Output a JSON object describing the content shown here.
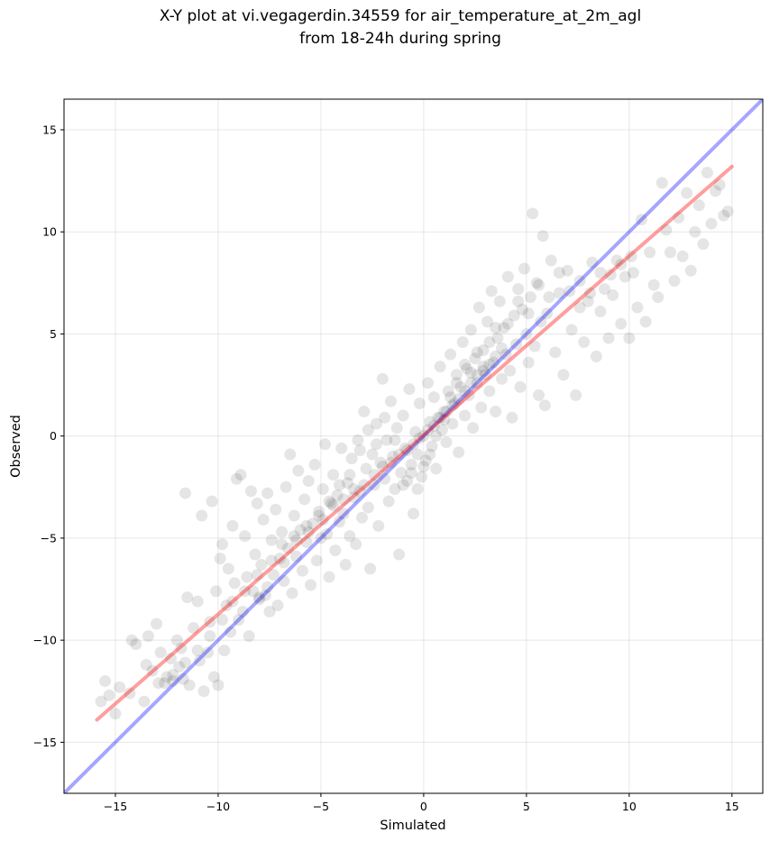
{
  "chart_data": {
    "type": "scatter",
    "title": "X-Y plot at vi.vegagerdin.34559 for air_temperature_at_2m_agl",
    "subtitle": "from 18-24h during spring",
    "xlabel": "Simulated",
    "ylabel": "Observed",
    "xlim": [
      -17.5,
      16.5
    ],
    "ylim": [
      -17.5,
      16.5
    ],
    "xticks": [
      -15,
      -10,
      -5,
      0,
      5,
      10,
      15
    ],
    "yticks": [
      -15,
      -10,
      -5,
      0,
      5,
      10,
      15
    ],
    "xtick_labels": [
      "−15",
      "−10",
      "−5",
      "0",
      "5",
      "10",
      "15"
    ],
    "ytick_labels": [
      "−15",
      "−10",
      "−5",
      "0",
      "5",
      "10",
      "15"
    ],
    "grid": true,
    "point_color": "#000000",
    "point_alpha": 0.1,
    "identity_line": {
      "color": "#0000ff",
      "from": [
        -17.5,
        -17.5
      ],
      "to": [
        16.5,
        16.5
      ]
    },
    "fit_line": {
      "color": "#ff0000",
      "from": [
        -15.9,
        -13.9
      ],
      "to": [
        15.0,
        13.2
      ]
    },
    "points": [
      [
        -15.7,
        -13.0
      ],
      [
        -15.5,
        -12.0
      ],
      [
        -15.3,
        -12.7
      ],
      [
        -15.0,
        -13.6
      ],
      [
        -14.8,
        -12.3
      ],
      [
        -14.3,
        -12.6
      ],
      [
        -14.2,
        -10.0
      ],
      [
        -14.0,
        -10.2
      ],
      [
        -13.6,
        -13.0
      ],
      [
        -13.5,
        -11.2
      ],
      [
        -13.4,
        -9.8
      ],
      [
        -13.2,
        -11.5
      ],
      [
        -13.0,
        -9.2
      ],
      [
        -12.8,
        -10.6
      ],
      [
        -12.6,
        -12.1
      ],
      [
        -12.5,
        -11.8
      ],
      [
        -12.3,
        -10.9
      ],
      [
        -12.2,
        -12.0
      ],
      [
        -12.0,
        -10.0
      ],
      [
        -11.9,
        -11.3
      ],
      [
        -11.8,
        -10.4
      ],
      [
        -11.7,
        -11.9
      ],
      [
        -11.6,
        -2.8
      ],
      [
        -11.5,
        -7.9
      ],
      [
        -11.4,
        -12.2
      ],
      [
        -11.2,
        -9.4
      ],
      [
        -11.0,
        -8.1
      ],
      [
        -10.9,
        -11.0
      ],
      [
        -10.8,
        -3.9
      ],
      [
        -10.7,
        -12.5
      ],
      [
        -10.5,
        -10.6
      ],
      [
        -10.4,
        -9.1
      ],
      [
        -10.3,
        -3.2
      ],
      [
        -10.2,
        -11.8
      ],
      [
        -10.1,
        -7.6
      ],
      [
        -10.0,
        -12.2
      ],
      [
        -9.9,
        -6.0
      ],
      [
        -9.8,
        -5.3
      ],
      [
        -9.7,
        -10.5
      ],
      [
        -9.6,
        -8.3
      ],
      [
        -9.5,
        -6.5
      ],
      [
        -9.4,
        -9.6
      ],
      [
        -9.3,
        -4.4
      ],
      [
        -9.2,
        -7.2
      ],
      [
        -9.1,
        -2.1
      ],
      [
        -9.0,
        -9.0
      ],
      [
        -8.9,
        -1.9
      ],
      [
        -8.8,
        -8.6
      ],
      [
        -8.7,
        -4.9
      ],
      [
        -8.6,
        -6.9
      ],
      [
        -8.5,
        -9.8
      ],
      [
        -8.4,
        -2.7
      ],
      [
        -8.3,
        -7.6
      ],
      [
        -8.2,
        -5.8
      ],
      [
        -8.1,
        -3.3
      ],
      [
        -8.0,
        -8.0
      ],
      [
        -7.9,
        -6.3
      ],
      [
        -7.8,
        -4.1
      ],
      [
        -7.7,
        -7.8
      ],
      [
        -7.6,
        -2.8
      ],
      [
        -7.5,
        -8.6
      ],
      [
        -7.4,
        -5.1
      ],
      [
        -7.3,
        -6.8
      ],
      [
        -7.2,
        -3.6
      ],
      [
        -7.1,
        -8.3
      ],
      [
        -7.0,
        -6.0
      ],
      [
        -6.9,
        -4.7
      ],
      [
        -6.8,
        -7.1
      ],
      [
        -6.7,
        -2.5
      ],
      [
        -6.6,
        -5.5
      ],
      [
        -6.5,
        -0.9
      ],
      [
        -6.4,
        -7.7
      ],
      [
        -6.3,
        -3.9
      ],
      [
        -6.2,
        -5.9
      ],
      [
        -6.1,
        -1.7
      ],
      [
        -6.0,
        -4.6
      ],
      [
        -5.9,
        -6.6
      ],
      [
        -5.8,
        -3.1
      ],
      [
        -5.7,
        -5.2
      ],
      [
        -5.6,
        -2.2
      ],
      [
        -5.5,
        -7.3
      ],
      [
        -5.4,
        -4.3
      ],
      [
        -5.3,
        -1.4
      ],
      [
        -5.2,
        -6.1
      ],
      [
        -5.1,
        -3.7
      ],
      [
        -5.0,
        -5.0
      ],
      [
        -4.9,
        -2.6
      ],
      [
        -4.8,
        -0.4
      ],
      [
        -4.7,
        -4.8
      ],
      [
        -4.6,
        -6.9
      ],
      [
        -4.5,
        -3.3
      ],
      [
        -4.4,
        -1.9
      ],
      [
        -4.3,
        -5.6
      ],
      [
        -4.2,
        -2.9
      ],
      [
        -4.1,
        -4.2
      ],
      [
        -4.0,
        -0.6
      ],
      [
        -3.9,
        -3.8
      ],
      [
        -3.8,
        -6.3
      ],
      [
        -3.7,
        -2.3
      ],
      [
        -3.6,
        -4.9
      ],
      [
        -3.5,
        -1.1
      ],
      [
        -3.4,
        -3.0
      ],
      [
        -3.3,
        -5.3
      ],
      [
        -3.2,
        -0.2
      ],
      [
        -3.1,
        -2.7
      ],
      [
        -3.0,
        -4.0
      ],
      [
        -2.9,
        1.2
      ],
      [
        -2.8,
        -1.6
      ],
      [
        -2.7,
        -3.5
      ],
      [
        -2.6,
        -6.5
      ],
      [
        -2.5,
        -0.9
      ],
      [
        -2.4,
        -2.4
      ],
      [
        -2.3,
        0.6
      ],
      [
        -2.2,
        -4.4
      ],
      [
        -2.1,
        -1.3
      ],
      [
        -2.0,
        2.8
      ],
      [
        -1.9,
        -2.1
      ],
      [
        -1.8,
        -0.2
      ],
      [
        -1.7,
        -3.2
      ],
      [
        -1.6,
        1.7
      ],
      [
        -1.5,
        -1.0
      ],
      [
        -1.4,
        -2.6
      ],
      [
        -1.3,
        0.4
      ],
      [
        -1.2,
        -5.8
      ],
      [
        -1.1,
        -1.8
      ],
      [
        -1.0,
        1.0
      ],
      [
        -0.9,
        -0.6
      ],
      [
        -0.8,
        -2.2
      ],
      [
        -0.7,
        2.3
      ],
      [
        -0.6,
        -1.4
      ],
      [
        -0.5,
        -3.8
      ],
      [
        -0.4,
        0.2
      ],
      [
        -0.3,
        -0.9
      ],
      [
        -0.2,
        1.6
      ],
      [
        -0.1,
        -2.0
      ],
      [
        0.0,
        0.0
      ],
      [
        0.1,
        -1.2
      ],
      [
        0.2,
        2.6
      ],
      [
        0.3,
        0.7
      ],
      [
        0.4,
        -0.5
      ],
      [
        0.5,
        1.9
      ],
      [
        0.6,
        -1.6
      ],
      [
        0.7,
        0.9
      ],
      [
        0.8,
        3.4
      ],
      [
        0.9,
        0.3
      ],
      [
        1.0,
        1.2
      ],
      [
        1.1,
        -0.3
      ],
      [
        1.2,
        2.2
      ],
      [
        1.3,
        4.0
      ],
      [
        1.4,
        0.6
      ],
      [
        1.5,
        1.6
      ],
      [
        1.6,
        3.0
      ],
      [
        1.7,
        -0.8
      ],
      [
        1.8,
        2.4
      ],
      [
        1.9,
        4.6
      ],
      [
        2.0,
        1.0
      ],
      [
        2.1,
        3.3
      ],
      [
        2.2,
        2.0
      ],
      [
        2.3,
        5.2
      ],
      [
        2.4,
        0.4
      ],
      [
        2.5,
        3.8
      ],
      [
        2.6,
        2.6
      ],
      [
        2.7,
        6.3
      ],
      [
        2.8,
        1.4
      ],
      [
        2.9,
        4.2
      ],
      [
        3.0,
        3.0
      ],
      [
        3.1,
        5.6
      ],
      [
        3.2,
        2.2
      ],
      [
        3.3,
        7.1
      ],
      [
        3.4,
        3.6
      ],
      [
        3.5,
        1.2
      ],
      [
        3.6,
        4.8
      ],
      [
        3.7,
        6.6
      ],
      [
        3.8,
        2.8
      ],
      [
        3.9,
        5.3
      ],
      [
        4.0,
        4.0
      ],
      [
        4.1,
        7.8
      ],
      [
        4.2,
        3.2
      ],
      [
        4.3,
        0.9
      ],
      [
        4.4,
        5.9
      ],
      [
        4.5,
        4.5
      ],
      [
        4.6,
        7.2
      ],
      [
        4.7,
        2.4
      ],
      [
        4.8,
        6.2
      ],
      [
        4.9,
        8.2
      ],
      [
        5.0,
        5.0
      ],
      [
        5.1,
        3.6
      ],
      [
        5.2,
        6.8
      ],
      [
        5.3,
        10.9
      ],
      [
        5.4,
        4.4
      ],
      [
        5.5,
        7.5
      ],
      [
        5.6,
        2.0
      ],
      [
        5.7,
        5.6
      ],
      [
        5.8,
        9.8
      ],
      [
        5.9,
        1.5
      ],
      [
        6.0,
        6.0
      ],
      [
        6.2,
        8.6
      ],
      [
        6.4,
        4.1
      ],
      [
        6.6,
        7.0
      ],
      [
        6.8,
        3.0
      ],
      [
        7.0,
        8.1
      ],
      [
        7.2,
        5.2
      ],
      [
        7.4,
        2.0
      ],
      [
        7.6,
        7.6
      ],
      [
        7.8,
        4.6
      ],
      [
        8.0,
        6.6
      ],
      [
        8.2,
        8.5
      ],
      [
        8.4,
        3.9
      ],
      [
        8.6,
        6.1
      ],
      [
        8.8,
        7.2
      ],
      [
        9.0,
        4.8
      ],
      [
        9.2,
        6.9
      ],
      [
        9.4,
        8.6
      ],
      [
        9.6,
        5.5
      ],
      [
        9.8,
        7.8
      ],
      [
        10.0,
        4.8
      ],
      [
        10.2,
        8.0
      ],
      [
        10.4,
        6.3
      ],
      [
        10.6,
        10.6
      ],
      [
        10.8,
        5.6
      ],
      [
        11.0,
        9.0
      ],
      [
        11.2,
        7.4
      ],
      [
        11.4,
        6.8
      ],
      [
        11.6,
        12.4
      ],
      [
        11.8,
        10.1
      ],
      [
        12.0,
        9.0
      ],
      [
        12.2,
        7.6
      ],
      [
        12.4,
        10.7
      ],
      [
        12.6,
        8.8
      ],
      [
        12.8,
        11.9
      ],
      [
        13.0,
        8.1
      ],
      [
        13.2,
        10.0
      ],
      [
        13.4,
        11.3
      ],
      [
        13.6,
        9.4
      ],
      [
        13.8,
        12.9
      ],
      [
        14.0,
        10.4
      ],
      [
        14.2,
        12.0
      ],
      [
        14.4,
        12.3
      ],
      [
        14.6,
        10.8
      ],
      [
        14.8,
        11.0
      ],
      [
        -8.0,
        -7.9
      ],
      [
        -7.6,
        -7.4
      ],
      [
        -6.8,
        -6.2
      ],
      [
        -6.2,
        -5.1
      ],
      [
        -5.6,
        -4.7
      ],
      [
        -4.9,
        -4.1
      ],
      [
        -4.4,
        -3.4
      ],
      [
        -3.9,
        -3.1
      ],
      [
        -3.4,
        -2.6
      ],
      [
        -2.9,
        -2.4
      ],
      [
        -2.4,
        -1.9
      ],
      [
        -2.0,
        -1.5
      ],
      [
        -1.6,
        -1.3
      ],
      [
        -1.2,
        -0.9
      ],
      [
        -0.8,
        -0.7
      ],
      [
        -0.5,
        -0.4
      ],
      [
        -0.2,
        -0.1
      ],
      [
        0.2,
        0.3
      ],
      [
        0.5,
        0.5
      ],
      [
        0.8,
        0.9
      ],
      [
        1.1,
        1.2
      ],
      [
        1.4,
        1.5
      ],
      [
        1.7,
        1.8
      ],
      [
        2.0,
        2.2
      ],
      [
        2.3,
        2.6
      ],
      [
        2.6,
        3.0
      ],
      [
        2.9,
        3.2
      ],
      [
        3.2,
        3.5
      ],
      [
        3.5,
        3.9
      ],
      [
        3.8,
        4.3
      ],
      [
        -1.0,
        -2.4
      ],
      [
        -0.6,
        -1.8
      ],
      [
        -0.3,
        -2.6
      ],
      [
        0.0,
        -1.5
      ],
      [
        0.3,
        -0.9
      ],
      [
        0.6,
        0.0
      ],
      [
        1.0,
        0.8
      ],
      [
        1.3,
        1.9
      ],
      [
        1.6,
        2.6
      ],
      [
        2.0,
        3.5
      ],
      [
        2.3,
        3.1
      ],
      [
        2.6,
        4.1
      ],
      [
        2.9,
        3.4
      ],
      [
        3.2,
        4.6
      ],
      [
        3.5,
        5.3
      ],
      [
        -1.4,
        -0.2
      ],
      [
        -1.9,
        0.9
      ],
      [
        -2.3,
        -0.4
      ],
      [
        -2.7,
        0.3
      ],
      [
        -3.1,
        -0.7
      ],
      [
        -3.6,
        -1.9
      ],
      [
        -4.1,
        -2.4
      ],
      [
        -4.6,
        -3.2
      ],
      [
        -5.1,
        -3.9
      ],
      [
        -5.7,
        -4.4
      ],
      [
        -6.3,
        -4.9
      ],
      [
        -6.9,
        -5.3
      ],
      [
        -7.4,
        -6.1
      ],
      [
        -8.1,
        -6.8
      ],
      [
        -8.7,
        -7.6
      ],
      [
        -9.3,
        -8.1
      ],
      [
        -9.8,
        -9.0
      ],
      [
        -10.4,
        -9.8
      ],
      [
        -11.0,
        -10.5
      ],
      [
        -11.6,
        -11.1
      ],
      [
        -12.2,
        -11.7
      ],
      [
        -12.9,
        -12.1
      ],
      [
        4.1,
        5.5
      ],
      [
        4.6,
        6.6
      ],
      [
        5.1,
        6.0
      ],
      [
        5.6,
        7.4
      ],
      [
        6.1,
        6.8
      ],
      [
        6.6,
        8.0
      ],
      [
        7.1,
        7.1
      ],
      [
        7.6,
        6.3
      ],
      [
        8.1,
        7.0
      ],
      [
        8.6,
        8.0
      ],
      [
        9.1,
        7.9
      ],
      [
        9.6,
        8.4
      ],
      [
        10.1,
        8.8
      ]
    ]
  }
}
